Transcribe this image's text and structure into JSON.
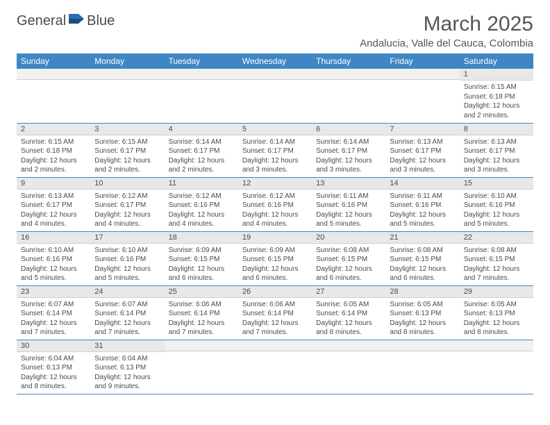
{
  "brand": {
    "part1": "General",
    "part2": "Blue"
  },
  "title": "March 2025",
  "location": "Andalucia, Valle del Cauca, Colombia",
  "colors": {
    "header_bg": "#3e86c4",
    "header_text": "#ffffff",
    "daynum_bg": "#e8e8e8",
    "cell_border": "#3e86c4",
    "text": "#4a4a4a",
    "logo_accent": "#2a6db0"
  },
  "weekdays": [
    "Sunday",
    "Monday",
    "Tuesday",
    "Wednesday",
    "Thursday",
    "Friday",
    "Saturday"
  ],
  "weeks": [
    [
      {
        "n": "",
        "lines": []
      },
      {
        "n": "",
        "lines": []
      },
      {
        "n": "",
        "lines": []
      },
      {
        "n": "",
        "lines": []
      },
      {
        "n": "",
        "lines": []
      },
      {
        "n": "",
        "lines": []
      },
      {
        "n": "1",
        "lines": [
          "Sunrise: 6:15 AM",
          "Sunset: 6:18 PM",
          "Daylight: 12 hours and 2 minutes."
        ]
      }
    ],
    [
      {
        "n": "2",
        "lines": [
          "Sunrise: 6:15 AM",
          "Sunset: 6:18 PM",
          "Daylight: 12 hours and 2 minutes."
        ]
      },
      {
        "n": "3",
        "lines": [
          "Sunrise: 6:15 AM",
          "Sunset: 6:17 PM",
          "Daylight: 12 hours and 2 minutes."
        ]
      },
      {
        "n": "4",
        "lines": [
          "Sunrise: 6:14 AM",
          "Sunset: 6:17 PM",
          "Daylight: 12 hours and 2 minutes."
        ]
      },
      {
        "n": "5",
        "lines": [
          "Sunrise: 6:14 AM",
          "Sunset: 6:17 PM",
          "Daylight: 12 hours and 3 minutes."
        ]
      },
      {
        "n": "6",
        "lines": [
          "Sunrise: 6:14 AM",
          "Sunset: 6:17 PM",
          "Daylight: 12 hours and 3 minutes."
        ]
      },
      {
        "n": "7",
        "lines": [
          "Sunrise: 6:13 AM",
          "Sunset: 6:17 PM",
          "Daylight: 12 hours and 3 minutes."
        ]
      },
      {
        "n": "8",
        "lines": [
          "Sunrise: 6:13 AM",
          "Sunset: 6:17 PM",
          "Daylight: 12 hours and 3 minutes."
        ]
      }
    ],
    [
      {
        "n": "9",
        "lines": [
          "Sunrise: 6:13 AM",
          "Sunset: 6:17 PM",
          "Daylight: 12 hours and 4 minutes."
        ]
      },
      {
        "n": "10",
        "lines": [
          "Sunrise: 6:12 AM",
          "Sunset: 6:17 PM",
          "Daylight: 12 hours and 4 minutes."
        ]
      },
      {
        "n": "11",
        "lines": [
          "Sunrise: 6:12 AM",
          "Sunset: 6:16 PM",
          "Daylight: 12 hours and 4 minutes."
        ]
      },
      {
        "n": "12",
        "lines": [
          "Sunrise: 6:12 AM",
          "Sunset: 6:16 PM",
          "Daylight: 12 hours and 4 minutes."
        ]
      },
      {
        "n": "13",
        "lines": [
          "Sunrise: 6:11 AM",
          "Sunset: 6:16 PM",
          "Daylight: 12 hours and 5 minutes."
        ]
      },
      {
        "n": "14",
        "lines": [
          "Sunrise: 6:11 AM",
          "Sunset: 6:16 PM",
          "Daylight: 12 hours and 5 minutes."
        ]
      },
      {
        "n": "15",
        "lines": [
          "Sunrise: 6:10 AM",
          "Sunset: 6:16 PM",
          "Daylight: 12 hours and 5 minutes."
        ]
      }
    ],
    [
      {
        "n": "16",
        "lines": [
          "Sunrise: 6:10 AM",
          "Sunset: 6:16 PM",
          "Daylight: 12 hours and 5 minutes."
        ]
      },
      {
        "n": "17",
        "lines": [
          "Sunrise: 6:10 AM",
          "Sunset: 6:16 PM",
          "Daylight: 12 hours and 5 minutes."
        ]
      },
      {
        "n": "18",
        "lines": [
          "Sunrise: 6:09 AM",
          "Sunset: 6:15 PM",
          "Daylight: 12 hours and 6 minutes."
        ]
      },
      {
        "n": "19",
        "lines": [
          "Sunrise: 6:09 AM",
          "Sunset: 6:15 PM",
          "Daylight: 12 hours and 6 minutes."
        ]
      },
      {
        "n": "20",
        "lines": [
          "Sunrise: 6:08 AM",
          "Sunset: 6:15 PM",
          "Daylight: 12 hours and 6 minutes."
        ]
      },
      {
        "n": "21",
        "lines": [
          "Sunrise: 6:08 AM",
          "Sunset: 6:15 PM",
          "Daylight: 12 hours and 6 minutes."
        ]
      },
      {
        "n": "22",
        "lines": [
          "Sunrise: 6:08 AM",
          "Sunset: 6:15 PM",
          "Daylight: 12 hours and 7 minutes."
        ]
      }
    ],
    [
      {
        "n": "23",
        "lines": [
          "Sunrise: 6:07 AM",
          "Sunset: 6:14 PM",
          "Daylight: 12 hours and 7 minutes."
        ]
      },
      {
        "n": "24",
        "lines": [
          "Sunrise: 6:07 AM",
          "Sunset: 6:14 PM",
          "Daylight: 12 hours and 7 minutes."
        ]
      },
      {
        "n": "25",
        "lines": [
          "Sunrise: 6:06 AM",
          "Sunset: 6:14 PM",
          "Daylight: 12 hours and 7 minutes."
        ]
      },
      {
        "n": "26",
        "lines": [
          "Sunrise: 6:06 AM",
          "Sunset: 6:14 PM",
          "Daylight: 12 hours and 7 minutes."
        ]
      },
      {
        "n": "27",
        "lines": [
          "Sunrise: 6:05 AM",
          "Sunset: 6:14 PM",
          "Daylight: 12 hours and 8 minutes."
        ]
      },
      {
        "n": "28",
        "lines": [
          "Sunrise: 6:05 AM",
          "Sunset: 6:13 PM",
          "Daylight: 12 hours and 8 minutes."
        ]
      },
      {
        "n": "29",
        "lines": [
          "Sunrise: 6:05 AM",
          "Sunset: 6:13 PM",
          "Daylight: 12 hours and 8 minutes."
        ]
      }
    ],
    [
      {
        "n": "30",
        "lines": [
          "Sunrise: 6:04 AM",
          "Sunset: 6:13 PM",
          "Daylight: 12 hours and 8 minutes."
        ]
      },
      {
        "n": "31",
        "lines": [
          "Sunrise: 6:04 AM",
          "Sunset: 6:13 PM",
          "Daylight: 12 hours and 9 minutes."
        ]
      },
      {
        "n": "",
        "lines": []
      },
      {
        "n": "",
        "lines": []
      },
      {
        "n": "",
        "lines": []
      },
      {
        "n": "",
        "lines": []
      },
      {
        "n": "",
        "lines": []
      }
    ]
  ]
}
